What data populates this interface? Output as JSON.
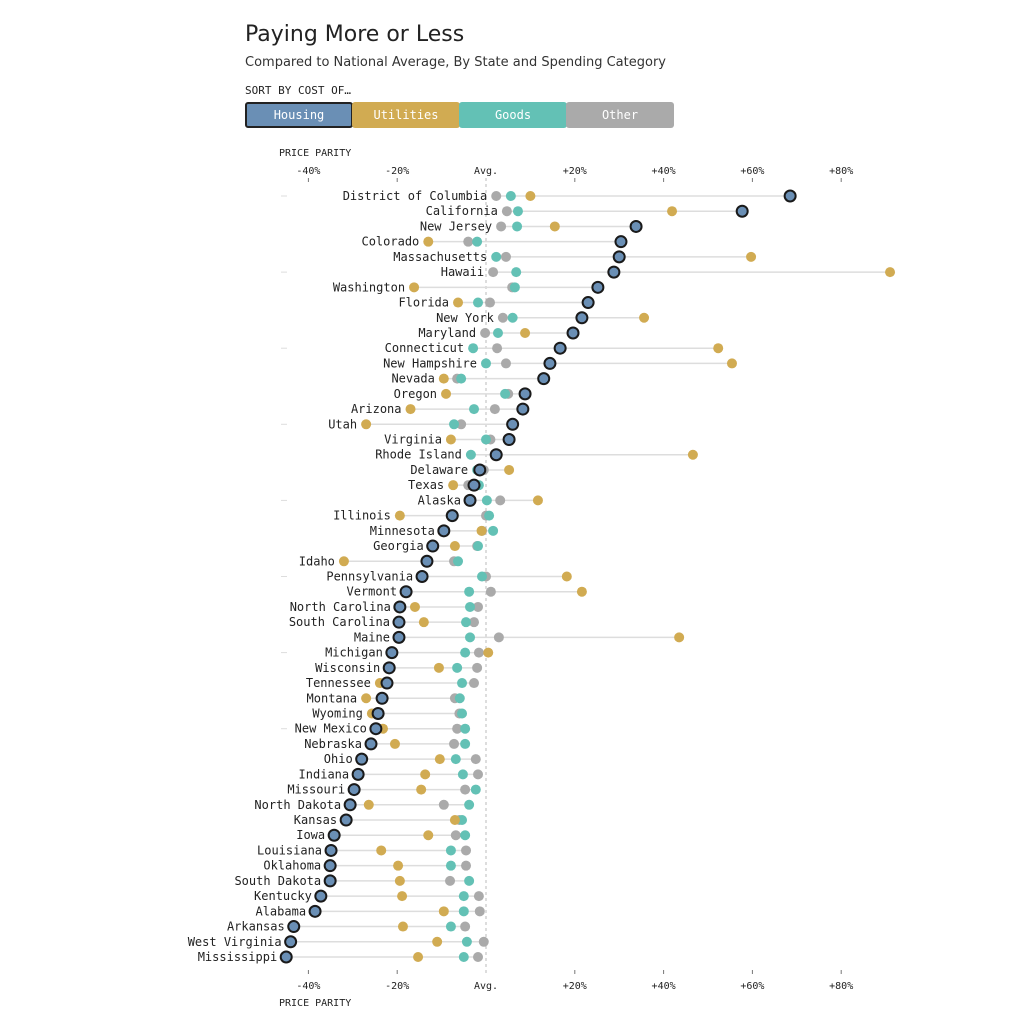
{
  "header": {
    "title": "Paying More or Less",
    "subtitle": "Compared to National Average, By State and Spending Category",
    "sort_label": "SORT BY COST OF…"
  },
  "buttons": [
    {
      "label": "Housing",
      "color": "#6a8fb5",
      "active": true
    },
    {
      "label": "Utilities",
      "color": "#d1ab52",
      "active": false
    },
    {
      "label": "Goods",
      "color": "#63c1b5",
      "active": false
    },
    {
      "label": "Other",
      "color": "#aaaaaa",
      "active": false
    }
  ],
  "chart_data": {
    "type": "dot",
    "xlabel": "PRICE PARITY",
    "xlim": [
      -40,
      80
    ],
    "ticks": [
      {
        "v": -40,
        "label": "-40%"
      },
      {
        "v": -20,
        "label": "-20%"
      },
      {
        "v": 0,
        "label": "Avg."
      },
      {
        "v": 20,
        "label": "+20%"
      },
      {
        "v": 40,
        "label": "+40%"
      },
      {
        "v": 60,
        "label": "+60%"
      },
      {
        "v": 80,
        "label": "+80%"
      }
    ],
    "series_names": [
      "Housing",
      "Utilities",
      "Goods",
      "Other"
    ],
    "colors": {
      "Housing": "#6a8fb5",
      "Utilities": "#d1ab52",
      "Goods": "#63c1b5",
      "Other": "#aaaaaa"
    },
    "rows": [
      {
        "state": "District of Columbia",
        "Housing": 68.5,
        "Utilities": 10,
        "Goods": 5.6,
        "Other": 2.3
      },
      {
        "state": "California",
        "Housing": 57.7,
        "Utilities": 41.9,
        "Goods": 7.2,
        "Other": 4.7
      },
      {
        "state": "New Jersey",
        "Housing": 33.8,
        "Utilities": 15.5,
        "Goods": 7,
        "Other": 3.4
      },
      {
        "state": "Colorado",
        "Housing": 30.4,
        "Utilities": -13,
        "Goods": -2,
        "Other": -4
      },
      {
        "state": "Massachusetts",
        "Housing": 30,
        "Utilities": 59.7,
        "Goods": 2.3,
        "Other": 4.5
      },
      {
        "state": "Hawaii",
        "Housing": 28.8,
        "Utilities": 91,
        "Goods": 6.8,
        "Other": 1.6
      },
      {
        "state": "Washington",
        "Housing": 25.2,
        "Utilities": -16.2,
        "Goods": 6.5,
        "Other": 5.9
      },
      {
        "state": "Florida",
        "Housing": 23,
        "Utilities": -6.3,
        "Goods": -1.8,
        "Other": 0.9
      },
      {
        "state": "New York",
        "Housing": 21.6,
        "Utilities": 35.6,
        "Goods": 6,
        "Other": 3.8
      },
      {
        "state": "Maryland",
        "Housing": 19.6,
        "Utilities": 8.8,
        "Goods": 2.7,
        "Other": -0.2
      },
      {
        "state": "Connecticut",
        "Housing": 16.7,
        "Utilities": 52.3,
        "Goods": -2.9,
        "Other": 2.5
      },
      {
        "state": "New Hampshire",
        "Housing": 14.4,
        "Utilities": 55.4,
        "Goods": 0,
        "Other": 4.5
      },
      {
        "state": "Nevada",
        "Housing": 13,
        "Utilities": -9.5,
        "Goods": -5.6,
        "Other": -6.5
      },
      {
        "state": "Oregon",
        "Housing": 8.8,
        "Utilities": -9,
        "Goods": 4.3,
        "Other": 5
      },
      {
        "state": "Arizona",
        "Housing": 8.3,
        "Utilities": -17,
        "Goods": -2.7,
        "Other": 2
      },
      {
        "state": "Utah",
        "Housing": 6,
        "Utilities": -27,
        "Goods": -7.2,
        "Other": -5.6
      },
      {
        "state": "Virginia",
        "Housing": 5.2,
        "Utilities": -7.9,
        "Goods": 0,
        "Other": 1
      },
      {
        "state": "Rhode Island",
        "Housing": 2.3,
        "Utilities": 46.6,
        "Goods": -3.4,
        "Other": 2
      },
      {
        "state": "Delaware",
        "Housing": -1.4,
        "Utilities": 5.2,
        "Goods": -2,
        "Other": -0.5
      },
      {
        "state": "Texas",
        "Housing": -2.7,
        "Utilities": -7.4,
        "Goods": -1.6,
        "Other": -4
      },
      {
        "state": "Alaska",
        "Housing": -3.6,
        "Utilities": 11.7,
        "Goods": 0.2,
        "Other": 3.2
      },
      {
        "state": "Illinois",
        "Housing": -7.6,
        "Utilities": -19.4,
        "Goods": 0.7,
        "Other": 0
      },
      {
        "state": "Minnesota",
        "Housing": -9.5,
        "Utilities": -1,
        "Goods": 1.6,
        "Other": -0.9
      },
      {
        "state": "Georgia",
        "Housing": -12,
        "Utilities": -7,
        "Goods": -1.8,
        "Other": -2
      },
      {
        "state": "Idaho",
        "Housing": -13.3,
        "Utilities": -32,
        "Goods": -6.3,
        "Other": -7.2
      },
      {
        "state": "Pennsylvania",
        "Housing": -14.4,
        "Utilities": 18.2,
        "Goods": -0.9,
        "Other": 0
      },
      {
        "state": "Vermont",
        "Housing": -18,
        "Utilities": 21.6,
        "Goods": -3.8,
        "Other": 1.1
      },
      {
        "state": "North Carolina",
        "Housing": -19.4,
        "Utilities": -16,
        "Goods": -3.6,
        "Other": -1.8
      },
      {
        "state": "South Carolina",
        "Housing": -19.6,
        "Utilities": -14,
        "Goods": -4.5,
        "Other": -2.7
      },
      {
        "state": "Maine",
        "Housing": -19.6,
        "Utilities": 43.5,
        "Goods": -3.6,
        "Other": 2.9
      },
      {
        "state": "Michigan",
        "Housing": -21.2,
        "Utilities": 0.5,
        "Goods": -4.7,
        "Other": -1.6
      },
      {
        "state": "Wisconsin",
        "Housing": -21.8,
        "Utilities": -10.6,
        "Goods": -6.5,
        "Other": -2
      },
      {
        "state": "Tennessee",
        "Housing": -22.3,
        "Utilities": -23.9,
        "Goods": -5.4,
        "Other": -2.7
      },
      {
        "state": "Montana",
        "Housing": -23.4,
        "Utilities": -27,
        "Goods": -5.9,
        "Other": -7
      },
      {
        "state": "Wyoming",
        "Housing": -24.3,
        "Utilities": -25.7,
        "Goods": -5.4,
        "Other": -6
      },
      {
        "state": "New Mexico",
        "Housing": -24.8,
        "Utilities": -23.2,
        "Goods": -4.7,
        "Other": -6.5
      },
      {
        "state": "Nebraska",
        "Housing": -25.9,
        "Utilities": -20.5,
        "Goods": -4.7,
        "Other": -7.2
      },
      {
        "state": "Ohio",
        "Housing": -28,
        "Utilities": -10.4,
        "Goods": -6.8,
        "Other": -2.3
      },
      {
        "state": "Indiana",
        "Housing": -28.8,
        "Utilities": -13.7,
        "Goods": -5.2,
        "Other": -1.8
      },
      {
        "state": "Missouri",
        "Housing": -29.7,
        "Utilities": -14.6,
        "Goods": -2.3,
        "Other": -4.7
      },
      {
        "state": "North Dakota",
        "Housing": -30.6,
        "Utilities": -26.4,
        "Goods": -3.8,
        "Other": -9.5
      },
      {
        "state": "Kansas",
        "Housing": -31.5,
        "Utilities": -7,
        "Goods": -5.4,
        "Other": -6
      },
      {
        "state": "Iowa",
        "Housing": -34.2,
        "Utilities": -13,
        "Goods": -4.7,
        "Other": -6.8
      },
      {
        "state": "Louisiana",
        "Housing": -34.9,
        "Utilities": -23.6,
        "Goods": -7.9,
        "Other": -4.5
      },
      {
        "state": "Oklahoma",
        "Housing": -35.1,
        "Utilities": -19.8,
        "Goods": -7.9,
        "Other": -4.5
      },
      {
        "state": "South Dakota",
        "Housing": -35.1,
        "Utilities": -19.4,
        "Goods": -3.8,
        "Other": -8.1
      },
      {
        "state": "Kentucky",
        "Housing": -37.2,
        "Utilities": -18.9,
        "Goods": -5,
        "Other": -1.6
      },
      {
        "state": "Alabama",
        "Housing": -38.5,
        "Utilities": -9.5,
        "Goods": -5,
        "Other": -1.4
      },
      {
        "state": "Arkansas",
        "Housing": -43.3,
        "Utilities": -18.7,
        "Goods": -7.9,
        "Other": -4.7
      },
      {
        "state": "West Virginia",
        "Housing": -44,
        "Utilities": -11,
        "Goods": -4.3,
        "Other": -0.5
      },
      {
        "state": "Mississippi",
        "Housing": -45,
        "Utilities": -15.3,
        "Goods": -5,
        "Other": -1.8
      }
    ]
  }
}
